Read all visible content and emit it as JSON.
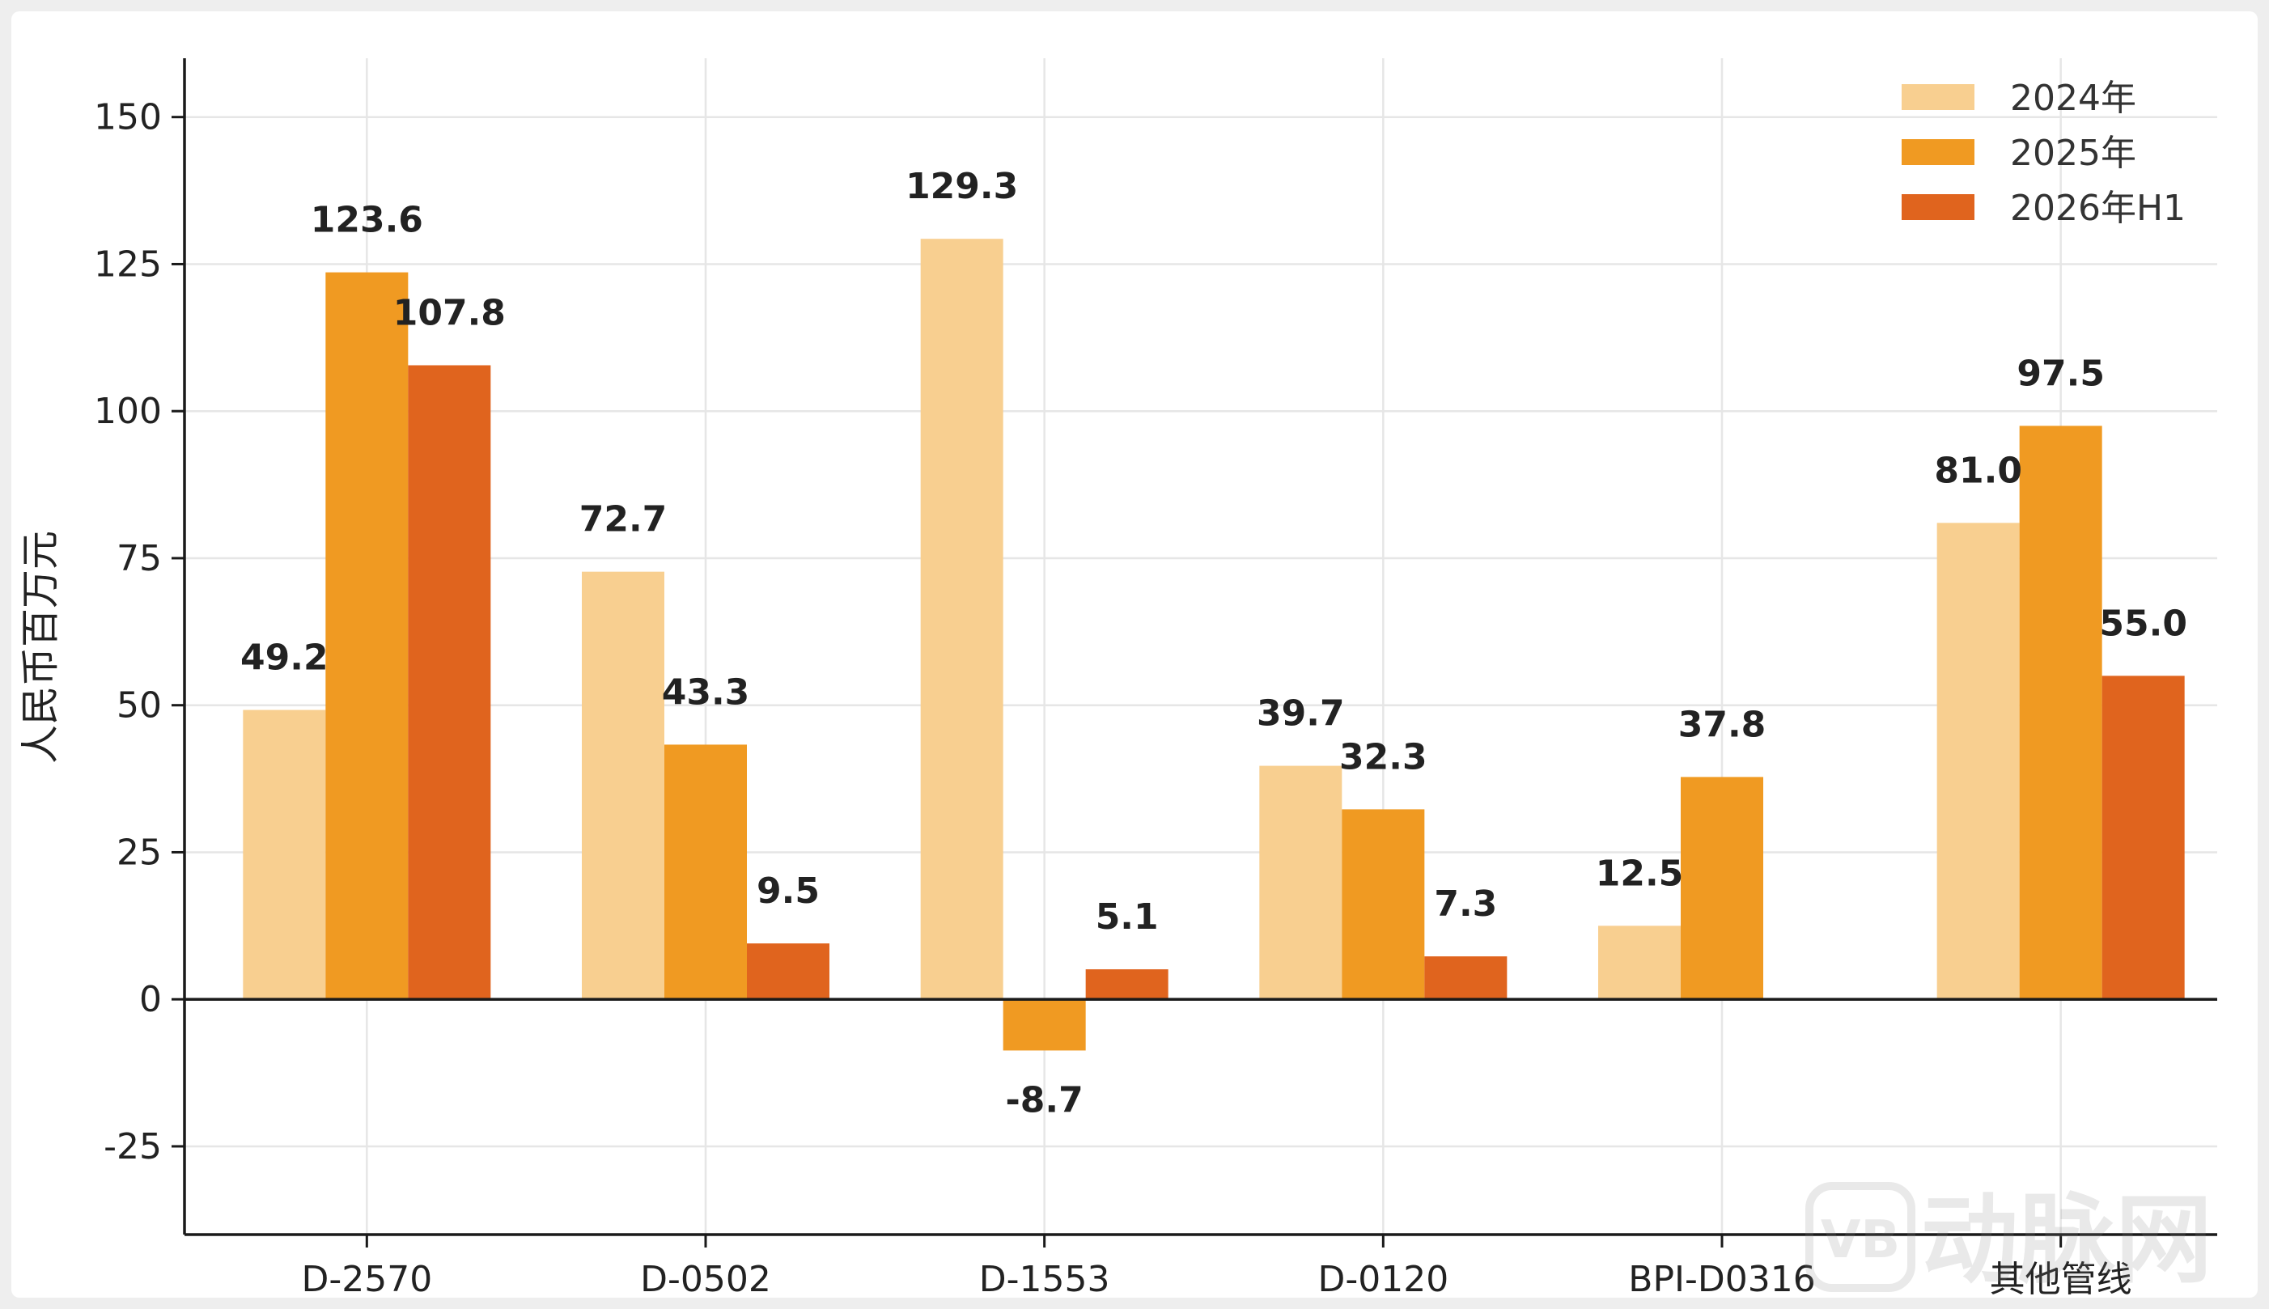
{
  "chart_data": {
    "type": "bar",
    "title": "",
    "xlabel": "",
    "ylabel": "人民币百万元",
    "categories": [
      "D-2570",
      "D-0502",
      "D-1553",
      "D-0120",
      "BPI-D0316",
      "其他管线"
    ],
    "series": [
      {
        "name": "2024年",
        "color": "#f8cf90",
        "values": [
          49.2,
          72.7,
          129.3,
          39.7,
          12.5,
          81.0
        ]
      },
      {
        "name": "2025年",
        "color": "#f09a22",
        "values": [
          123.6,
          43.3,
          -8.7,
          32.3,
          37.8,
          97.5
        ]
      },
      {
        "name": "2026年H1",
        "color": "#e0641e",
        "values": [
          107.8,
          9.5,
          5.1,
          7.3,
          null,
          55.0
        ]
      }
    ],
    "ylim": [
      -40,
      160
    ],
    "yticks": [
      -25,
      0,
      25,
      50,
      75,
      100,
      125,
      150
    ],
    "grid": true,
    "legend": "top-right"
  },
  "watermark": {
    "text": "动脉网",
    "logo": "VB"
  }
}
